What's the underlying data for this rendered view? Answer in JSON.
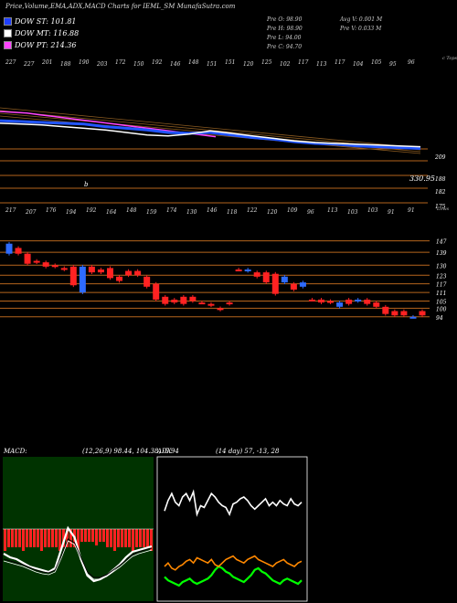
{
  "header": {
    "title": "Price,Volume,EMA,ADX,MACD Charts for IEML_SM MunafaSutra.com"
  },
  "legend": [
    {
      "label": "DOW ST: 101.81",
      "color": "#1f3fff"
    },
    {
      "label": "DOW MT: 116.88",
      "color": "#ffffff"
    },
    {
      "label": "DOW PT: 214.36",
      "color": "#ff44ff"
    }
  ],
  "ohlc": {
    "pre_o": "Pre   O: 98.90",
    "pre_h": "Pre   H: 98.90",
    "pre_l": "Pre   L: 94.00",
    "pre_c": "Pre   C: 94.70",
    "avg_v": "Avg V: 0.001 M",
    "pre_v": "Pre   V: 0.033 M"
  },
  "chart_data": [
    {
      "type": "line",
      "title": "EMA",
      "top_tick_labels": [
        "227",
        "227",
        "201",
        "188",
        "190",
        "203",
        "172",
        "150",
        "192",
        "146",
        "148",
        "151",
        "151",
        "120",
        "125",
        "102",
        "117",
        "113",
        "117",
        "104",
        "105",
        "95",
        "96"
      ],
      "right_labels": [
        "209",
        "188",
        "182",
        "175",
        "330.95"
      ],
      "corner_labels": [
        "c Tops",
        "Lows"
      ],
      "annotation": "b",
      "series": [
        {
          "color": "#ff44ff",
          "values": [
            228,
            227,
            226,
            224,
            222,
            220,
            218,
            216,
            214,
            212,
            210,
            208,
            206,
            204,
            202,
            200,
            198
          ]
        },
        {
          "color": "#2255ff",
          "values": [
            217,
            216,
            215,
            214,
            213,
            210,
            208,
            206,
            203,
            202,
            203,
            200,
            197,
            195,
            192,
            190,
            189,
            187,
            186,
            185,
            184
          ]
        },
        {
          "color": "#ffffff",
          "values": [
            214,
            213,
            212,
            210,
            208,
            206,
            203,
            200,
            199,
            201,
            205,
            202,
            199,
            196,
            193,
            191,
            190,
            189,
            188,
            187,
            186
          ]
        }
      ]
    },
    {
      "type": "candlestick",
      "title": "Price",
      "top_tick_labels": [
        "217",
        "207",
        "176",
        "194",
        "192",
        "164",
        "148",
        "159",
        "174",
        "130",
        "146",
        "118",
        "122",
        "120",
        "109",
        "96",
        "113",
        "103",
        "103",
        "91",
        "91"
      ],
      "right_labels": [
        "147",
        "139",
        "130",
        "123",
        "117",
        "111",
        "105",
        "100",
        "94"
      ],
      "candles": [
        {
          "o": 145,
          "c": 138,
          "up": true
        },
        {
          "o": 142,
          "c": 138,
          "up": false
        },
        {
          "o": 138,
          "c": 131,
          "up": false
        },
        {
          "o": 133,
          "c": 132,
          "up": false
        },
        {
          "o": 132,
          "c": 129,
          "up": false
        },
        {
          "o": 130,
          "c": 129,
          "up": false
        },
        {
          "o": 128,
          "c": 127,
          "up": false
        },
        {
          "o": 129,
          "c": 116,
          "up": false
        },
        {
          "o": 129,
          "c": 111,
          "up": true
        },
        {
          "o": 129,
          "c": 125,
          "up": false
        },
        {
          "o": 127,
          "c": 125,
          "up": false
        },
        {
          "o": 128,
          "c": 121,
          "up": false
        },
        {
          "o": 122,
          "c": 119,
          "up": false
        },
        {
          "o": 126,
          "c": 123,
          "up": false
        },
        {
          "o": 126,
          "c": 123,
          "up": false
        },
        {
          "o": 122,
          "c": 115,
          "up": false
        },
        {
          "o": 117,
          "c": 106,
          "up": false
        },
        {
          "o": 108,
          "c": 103,
          "up": false
        },
        {
          "o": 106,
          "c": 104,
          "up": false
        },
        {
          "o": 108,
          "c": 103,
          "up": false
        },
        {
          "o": 108,
          "c": 105,
          "up": false
        },
        {
          "o": 104,
          "c": 104,
          "up": false
        },
        {
          "o": 103,
          "c": 102,
          "up": false
        },
        {
          "o": 100,
          "c": 99,
          "up": false
        },
        {
          "o": 104,
          "c": 103,
          "up": false
        },
        {
          "o": 127,
          "c": 127,
          "up": false
        },
        {
          "o": 127,
          "c": 126,
          "up": true
        },
        {
          "o": 125,
          "c": 122,
          "up": false
        },
        {
          "o": 125,
          "c": 118,
          "up": false
        },
        {
          "o": 124,
          "c": 110,
          "up": false
        },
        {
          "o": 122,
          "c": 118,
          "up": true
        },
        {
          "o": 117,
          "c": 113,
          "up": false
        },
        {
          "o": 118,
          "c": 115,
          "up": true
        },
        {
          "o": 106,
          "c": 106,
          "up": false
        },
        {
          "o": 106,
          "c": 104,
          "up": false
        },
        {
          "o": 105,
          "c": 104,
          "up": false
        },
        {
          "o": 104,
          "c": 101,
          "up": true
        },
        {
          "o": 106,
          "c": 103,
          "up": false
        },
        {
          "o": 106,
          "c": 105,
          "up": true
        },
        {
          "o": 106,
          "c": 103,
          "up": false
        },
        {
          "o": 104,
          "c": 101,
          "up": false
        },
        {
          "o": 101,
          "c": 96,
          "up": false
        },
        {
          "o": 98,
          "c": 95,
          "up": false
        },
        {
          "o": 98,
          "c": 95,
          "up": false
        },
        {
          "o": 94,
          "c": 94,
          "up": true
        },
        {
          "o": 98,
          "c": 95,
          "up": false
        }
      ]
    },
    {
      "type": "bar",
      "title": "MACD",
      "label": "MACD:",
      "params": "(12,26,9) 98.44,  104.38,  -5.94",
      "histogram_values": [
        2,
        2,
        2,
        2,
        2,
        2,
        2,
        2,
        2,
        2,
        2,
        2,
        2,
        2,
        2,
        2,
        2,
        2,
        2,
        2,
        2,
        2,
        2,
        2,
        2,
        2,
        2,
        2,
        2,
        2,
        2,
        2,
        2,
        2,
        2,
        2,
        2,
        2,
        2,
        2,
        2
      ]
    },
    {
      "type": "line",
      "title": "ADX",
      "label": "ADX",
      "params": "(14  day)  57,  -13,  28",
      "series": [
        {
          "color": "#ffffff",
          "values": [
            52,
            58,
            62,
            57,
            55,
            60,
            62,
            58,
            63,
            50,
            55,
            54,
            58,
            62,
            60,
            57,
            55,
            54,
            50,
            56,
            57,
            59,
            60,
            58,
            55,
            53,
            55,
            57,
            59,
            55,
            57,
            55,
            58,
            56,
            55,
            59,
            56,
            55,
            57
          ]
        },
        {
          "color": "#00ff00",
          "values": [
            14,
            12,
            11,
            10,
            9,
            11,
            12,
            13,
            11,
            10,
            11,
            12,
            13,
            15,
            18,
            20,
            19,
            17,
            16,
            14,
            13,
            12,
            11,
            13,
            15,
            18,
            19,
            17,
            16,
            14,
            12,
            11,
            10,
            12,
            13,
            12,
            11,
            10,
            12
          ]
        },
        {
          "color": "#ff8800",
          "values": [
            20,
            22,
            19,
            18,
            20,
            21,
            23,
            24,
            22,
            25,
            24,
            23,
            22,
            24,
            21,
            20,
            22,
            24,
            25,
            26,
            24,
            23,
            22,
            24,
            25,
            26,
            24,
            23,
            22,
            21,
            20,
            22,
            23,
            24,
            22,
            21,
            20,
            22,
            23
          ]
        }
      ]
    }
  ]
}
